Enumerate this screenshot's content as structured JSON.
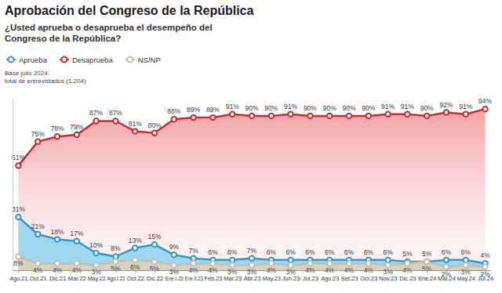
{
  "chart_data": {
    "type": "line",
    "title": "Aprobación del Congreso de la República",
    "subtitle": "¿Usted aprueba o desaprueba el desempeño del Congreso de la República?",
    "notes": [
      "Base julio 2024:",
      "total de entrevistados (1.204)"
    ],
    "categories": [
      "Ago.21",
      "Oct.21",
      "Dic.21",
      "Mar.22",
      "May.22",
      "Ago.I.22",
      "Oct.22",
      "Dic.22",
      "Ene.I.23",
      "Ene.II.23",
      "Feb.23",
      "Mar.23",
      "Abr.23",
      "May.23",
      "Jun.23",
      "Jul.23",
      "Ago.23",
      "Set.23",
      "Oct.23",
      "Nov.23",
      "Dic.23",
      "Ene.24",
      "Mar.24",
      "May.24",
      "Jul.24"
    ],
    "series": [
      {
        "name": "Aprueba",
        "color": "#2a9ad3",
        "marker": "circle",
        "line_style": "solid",
        "values": [
          31,
          21,
          18,
          17,
          10,
          8,
          13,
          15,
          9,
          7,
          6,
          6,
          7,
          6,
          6,
          6,
          6,
          6,
          6,
          6,
          5,
          5,
          6,
          6,
          4
        ],
        "value_labels": [
          "31%",
          "21%",
          "18%",
          "17%",
          "10%",
          "8%",
          "13%",
          "15%",
          "9%",
          "7%",
          "6%",
          "6%",
          "7%",
          "6%",
          "6%",
          "6%",
          "6%",
          "6%",
          "6%",
          "6%",
          "5%",
          "5%",
          "6%",
          "6%",
          "4%"
        ]
      },
      {
        "name": "Desaprueba",
        "color": "#d4262e",
        "marker": "circle",
        "line_style": "solid",
        "values": [
          61,
          75,
          78,
          79,
          87,
          87,
          81,
          80,
          88,
          89,
          89,
          91,
          90,
          90,
          91,
          90,
          90,
          90,
          90,
          91,
          91,
          90,
          92,
          91,
          94
        ],
        "value_labels": [
          "61%",
          "75%",
          "78%",
          "79%",
          "87%",
          "87%",
          "81%",
          "80%",
          "88%",
          "89%",
          "89%",
          "91%",
          "90%",
          "90%",
          "91%",
          "90%",
          "90%",
          "90%",
          "90%",
          "91%",
          "91%",
          "90%",
          "92%",
          "91%",
          "94%"
        ]
      },
      {
        "name": "NS/NP",
        "color": "#c8bea6",
        "marker": "circle",
        "line_style": "solid",
        "values": [
          8,
          4,
          4,
          4,
          3,
          5,
          6,
          5,
          3,
          4,
          4,
          3,
          3,
          4,
          3,
          4,
          4,
          4,
          4,
          3,
          4,
          5,
          2,
          3,
          2
        ],
        "value_labels": [
          "8%",
          "4%",
          "4%",
          "4%",
          "3%",
          "5%",
          "6%",
          "5%",
          "3%",
          "4%",
          "4%",
          "3%",
          "3%",
          "4%",
          "3%",
          "4%",
          "4%",
          "4%",
          "4%",
          "3%",
          "4%",
          "5%",
          "2%",
          "3%",
          "2%"
        ]
      }
    ],
    "ylim": [
      0,
      100
    ],
    "yticks": [],
    "tick_labels": "x",
    "grid": false,
    "legend": "top-left",
    "data_labels": true
  }
}
